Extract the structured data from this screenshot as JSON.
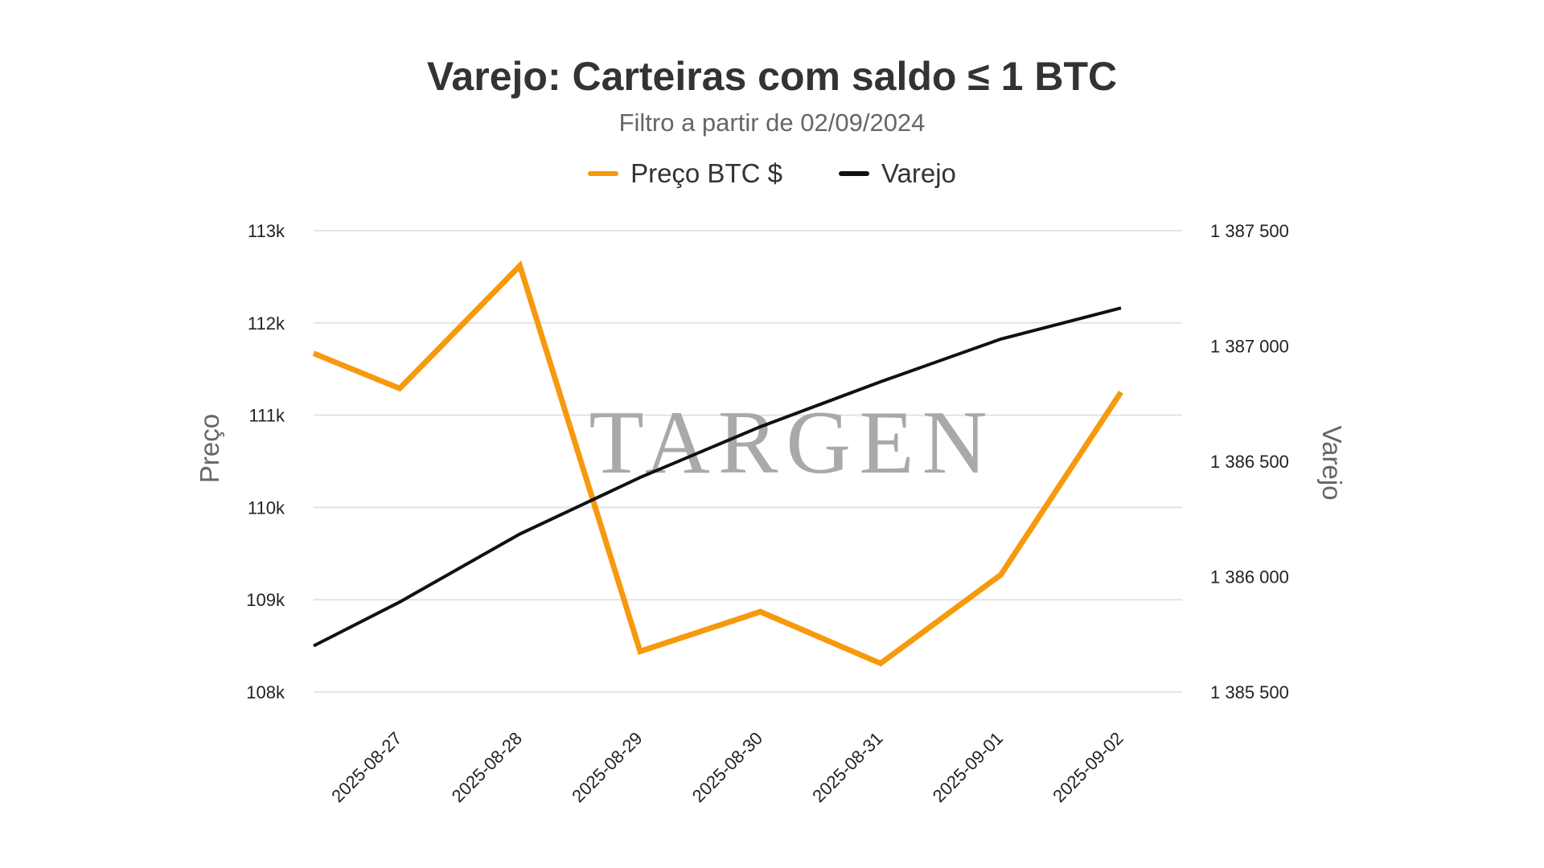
{
  "watermark": "TARGEN",
  "chart_data": {
    "type": "line",
    "title": "Varejo: Carteiras com saldo ≤ 1 BTC",
    "subtitle": "Filtro a partir de 02/09/2024",
    "categories": [
      "2025-08-27",
      "2025-08-28",
      "2025-08-29",
      "2025-08-30",
      "2025-08-31",
      "2025-09-01",
      "2025-09-02"
    ],
    "y_left": {
      "label": "Preço",
      "range": [
        108000,
        113000
      ],
      "ticks": [
        108000,
        109000,
        110000,
        111000,
        112000,
        113000
      ],
      "tick_labels": [
        "108k",
        "109k",
        "110k",
        "111k",
        "112k",
        "113k"
      ]
    },
    "y_right": {
      "label": "Varejo",
      "range": [
        1385500,
        1387500
      ],
      "ticks": [
        1385500,
        1386000,
        1386500,
        1387000,
        1387500
      ],
      "tick_labels": [
        "1 385 500",
        "1 386 000",
        "1 386 500",
        "1 387 000",
        "1 387 500"
      ]
    },
    "grid": true,
    "legend_position": "top-center",
    "series": [
      {
        "name": "Preço BTC $",
        "axis": "left",
        "color": "#F7990C",
        "start": 111670,
        "values": [
          111290,
          112620,
          108440,
          108870,
          108310,
          109270,
          111250
        ]
      },
      {
        "name": "Varejo",
        "axis": "right",
        "color": "#111111",
        "start": 1385700,
        "values": [
          1385890,
          1386185,
          1386430,
          1386650,
          1386845,
          1387030,
          1387165
        ]
      }
    ]
  }
}
